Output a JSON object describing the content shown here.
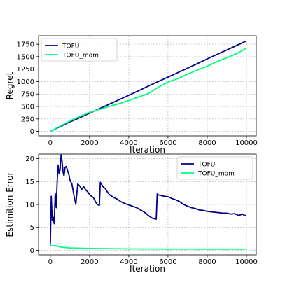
{
  "chart_data": [
    {
      "type": "line",
      "ylabel": "Regret",
      "xlabel": "Iteration",
      "xlim": [
        -600,
        10500
      ],
      "ylim": [
        -90,
        1920
      ],
      "x_ticks": [
        0,
        2000,
        4000,
        6000,
        8000,
        10000
      ],
      "y_ticks": [
        0,
        250,
        500,
        750,
        1000,
        1250,
        1500,
        1750
      ],
      "grid": true,
      "legend_position": "top-left",
      "series": [
        {
          "name": "TOFU",
          "color": "#00008b",
          "x": [
            0,
            500,
            1000,
            1500,
            2000,
            2500,
            3000,
            3500,
            4000,
            4500,
            5000,
            5500,
            6000,
            6500,
            7000,
            7500,
            8000,
            8500,
            9000,
            9500,
            10000
          ],
          "y": [
            0,
            95,
            190,
            275,
            365,
            455,
            545,
            635,
            725,
            815,
            910,
            1000,
            1090,
            1180,
            1270,
            1360,
            1455,
            1545,
            1635,
            1725,
            1815
          ]
        },
        {
          "name": "TOFU_mom",
          "color": "#00ff7f",
          "x": [
            0,
            500,
            1000,
            1500,
            2000,
            2500,
            3000,
            3500,
            4000,
            4500,
            5000,
            5500,
            6000,
            6500,
            7000,
            7500,
            8000,
            8500,
            9000,
            9500,
            10000
          ],
          "y": [
            0,
            105,
            210,
            300,
            380,
            440,
            500,
            555,
            620,
            690,
            760,
            885,
            990,
            1060,
            1150,
            1230,
            1310,
            1400,
            1480,
            1560,
            1670
          ]
        }
      ]
    },
    {
      "type": "line",
      "ylabel": "Estimition Error",
      "xlabel": "Iteration",
      "xlim": [
        -600,
        10500
      ],
      "ylim": [
        -1,
        21
      ],
      "x_ticks": [
        0,
        2000,
        4000,
        6000,
        8000,
        10000
      ],
      "y_ticks": [
        0,
        5,
        10,
        15,
        20
      ],
      "grid": true,
      "legend_position": "top-right",
      "series": [
        {
          "name": "TOFU",
          "color": "#00008b",
          "x": [
            0,
            50,
            100,
            150,
            200,
            250,
            300,
            350,
            400,
            450,
            500,
            550,
            600,
            650,
            700,
            750,
            800,
            850,
            900,
            950,
            1000,
            1100,
            1200,
            1300,
            1400,
            1500,
            1600,
            1700,
            1800,
            1900,
            2000,
            2100,
            2200,
            2300,
            2400,
            2500,
            2550,
            2600,
            2700,
            2800,
            2900,
            3000,
            3200,
            3400,
            3600,
            3800,
            4000,
            4200,
            4400,
            4600,
            4800,
            5000,
            5200,
            5400,
            5450,
            5500,
            5600,
            5800,
            6000,
            6200,
            6400,
            6600,
            6800,
            7000,
            7200,
            7400,
            7600,
            7800,
            8000,
            8200,
            8400,
            8600,
            8800,
            9000,
            9200,
            9400,
            9600,
            9800,
            9900,
            10000
          ],
          "y": [
            1.2,
            11.8,
            6.5,
            7.2,
            5.8,
            12.5,
            9.3,
            15,
            18.6,
            16.8,
            17.6,
            20.8,
            19.5,
            17.1,
            16.2,
            18.1,
            18.3,
            17.8,
            17.1,
            16.5,
            15.3,
            14.5,
            12.1,
            10,
            14.5,
            14,
            13.3,
            13.9,
            13.2,
            12.8,
            12.2,
            11.8,
            11.5,
            10.6,
            10,
            9.8,
            14.8,
            14.5,
            13.8,
            13.5,
            12.8,
            12.2,
            11.6,
            11.2,
            10.6,
            10.2,
            9.9,
            9.6,
            9.3,
            8.8,
            8.3,
            7.6,
            7,
            6.8,
            12.3,
            12.1,
            12,
            11.8,
            11.7,
            11.3,
            11,
            10.6,
            10,
            9.6,
            9.3,
            9.1,
            8.8,
            8.7,
            8.5,
            8.4,
            8.3,
            8.2,
            8.1,
            8.1,
            7.9,
            8,
            7.6,
            7.9,
            7.6,
            7.6
          ]
        },
        {
          "name": "TOFU_mom",
          "color": "#00ff7f",
          "x": [
            0,
            300,
            500,
            800,
            1000,
            1500,
            2000,
            3000,
            4000,
            5000,
            6000,
            7000,
            8000,
            9000,
            10000
          ],
          "y": [
            1.0,
            1.0,
            0.7,
            0.6,
            0.5,
            0.45,
            0.4,
            0.35,
            0.3,
            0.28,
            0.27,
            0.26,
            0.25,
            0.25,
            0.25
          ]
        }
      ]
    }
  ]
}
